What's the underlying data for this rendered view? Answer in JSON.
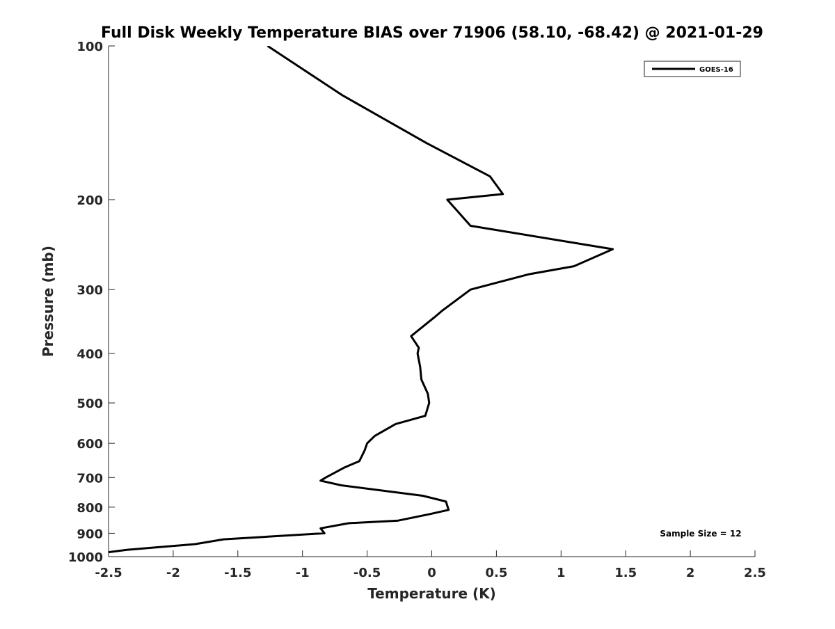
{
  "chart_data": {
    "type": "line",
    "title": "Full Disk Weekly Temperature BIAS over 71906 (58.10, -68.42) @ 2021-01-29",
    "xlabel": "Temperature (K)",
    "ylabel": "Pressure (mb)",
    "xlim": [
      -2.5,
      2.5
    ],
    "ylim": [
      100,
      1000
    ],
    "y_scale": "log",
    "y_reversed": true,
    "grid": false,
    "legend_position": "top-right",
    "x_ticks": [
      "-2.5",
      "-2",
      "-1.5",
      "-1",
      "-0.5",
      "0",
      "0.5",
      "1",
      "1.5",
      "2",
      "2.5"
    ],
    "y_ticks": [
      "100",
      "200",
      "300",
      "400",
      "500",
      "600",
      "700",
      "800",
      "900",
      "1000"
    ],
    "annotation": "Sample Size = 12",
    "series": [
      {
        "name": "GOES-16",
        "color": "#000000",
        "x": [
          -1.27,
          -0.69,
          -0.04,
          0.45,
          0.55,
          0.12,
          0.3,
          1.4,
          1.1,
          0.75,
          0.3,
          0.08,
          0.02,
          -0.16,
          -0.1,
          -0.11,
          -0.09,
          -0.08,
          -0.03,
          -0.02,
          -0.05,
          -0.28,
          -0.44,
          -0.5,
          -0.52,
          -0.56,
          -0.68,
          -0.82,
          -0.86,
          -0.7,
          -0.07,
          0.11,
          0.13,
          -0.01,
          -0.26,
          -0.64,
          -0.86,
          -0.83,
          -1.61,
          -1.83,
          -2.36,
          -2.5
        ],
        "y": [
          100,
          125,
          155,
          180,
          195,
          200,
          225,
          250,
          270,
          280,
          300,
          330,
          340,
          370,
          390,
          400,
          425,
          450,
          480,
          500,
          530,
          550,
          580,
          600,
          620,
          650,
          670,
          700,
          710,
          725,
          760,
          780,
          810,
          825,
          850,
          860,
          880,
          900,
          925,
          945,
          970,
          980
        ]
      }
    ]
  }
}
